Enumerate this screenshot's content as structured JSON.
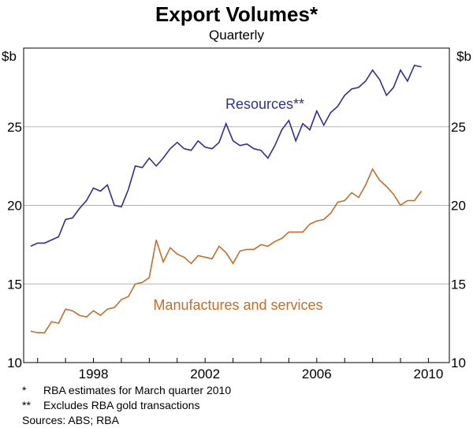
{
  "chart_data": {
    "type": "line",
    "title": "Export Volumes*",
    "subtitle": "Quarterly",
    "y_unit_left": "$b",
    "y_unit_right": "$b",
    "ylim": [
      10,
      30
    ],
    "yticks": [
      10,
      15,
      20,
      25
    ],
    "xlim": [
      1995.5,
      2010.75
    ],
    "xticks": [
      1998,
      2002,
      2006,
      2010
    ],
    "grid": "horizontal",
    "x": [
      1995.75,
      1996.0,
      1996.25,
      1996.5,
      1996.75,
      1997.0,
      1997.25,
      1997.5,
      1997.75,
      1998.0,
      1998.25,
      1998.5,
      1998.75,
      1999.0,
      1999.25,
      1999.5,
      1999.75,
      2000.0,
      2000.25,
      2000.5,
      2000.75,
      2001.0,
      2001.25,
      2001.5,
      2001.75,
      2002.0,
      2002.25,
      2002.5,
      2002.75,
      2003.0,
      2003.25,
      2003.5,
      2003.75,
      2004.0,
      2004.25,
      2004.5,
      2004.75,
      2005.0,
      2005.25,
      2005.5,
      2005.75,
      2006.0,
      2006.25,
      2006.5,
      2006.75,
      2007.0,
      2007.25,
      2007.5,
      2007.75,
      2008.0,
      2008.25,
      2008.5,
      2008.75,
      2009.0,
      2009.25,
      2009.5,
      2009.75,
      2010.0
    ],
    "series": [
      {
        "name": "Resources**",
        "color": "#2e3192",
        "values": [
          17.4,
          17.6,
          17.6,
          17.8,
          18.0,
          19.1,
          19.2,
          19.8,
          20.3,
          21.1,
          20.9,
          21.3,
          20.0,
          19.9,
          21.0,
          22.5,
          22.4,
          23.0,
          22.5,
          23.0,
          23.6,
          24.0,
          23.6,
          23.5,
          24.1,
          23.7,
          23.6,
          24.0,
          25.2,
          24.1,
          23.8,
          23.9,
          23.6,
          23.5,
          23.0,
          23.8,
          24.8,
          25.4,
          24.1,
          25.2,
          24.8,
          26.0,
          25.1,
          25.9,
          26.3,
          27.0,
          27.4,
          27.5,
          27.9,
          28.6,
          28.0,
          27.0,
          27.5,
          28.6,
          27.9,
          28.9,
          28.8,
          null
        ]
      },
      {
        "name": "Manufactures and services",
        "color": "#c46e2b",
        "values": [
          12.0,
          11.9,
          11.9,
          12.6,
          12.5,
          13.4,
          13.3,
          13.0,
          12.9,
          13.3,
          13.0,
          13.4,
          13.5,
          14.0,
          14.2,
          15.0,
          15.1,
          15.4,
          17.8,
          16.4,
          17.3,
          16.9,
          16.7,
          16.3,
          16.8,
          16.7,
          16.6,
          17.4,
          17.0,
          16.3,
          17.1,
          17.2,
          17.2,
          17.5,
          17.4,
          17.7,
          17.9,
          18.3,
          18.3,
          18.3,
          18.8,
          19.0,
          19.1,
          19.5,
          20.2,
          20.3,
          20.8,
          20.5,
          21.3,
          22.3,
          21.6,
          21.2,
          20.7,
          20.0,
          20.3,
          20.3,
          20.9,
          null
        ]
      }
    ]
  },
  "notes": [
    {
      "mark": "*",
      "text": "RBA estimates for March quarter 2010"
    },
    {
      "mark": "**",
      "text": "Excludes RBA gold transactions"
    }
  ],
  "sources": "Sources: ABS; RBA"
}
